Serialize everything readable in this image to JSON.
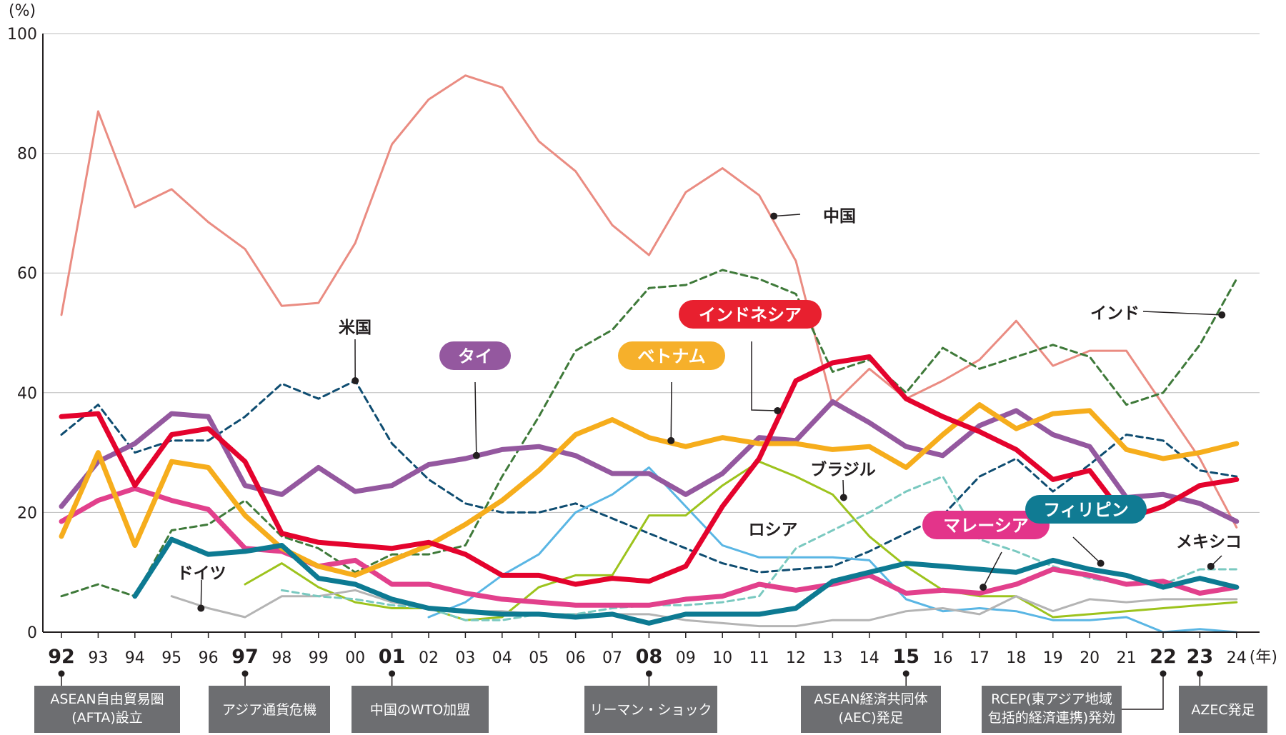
{
  "chart_data": {
    "type": "line",
    "unit_label": "(%)",
    "x_unit_label": "(年)",
    "ylim": [
      0,
      100
    ],
    "yticks": [
      0,
      20,
      40,
      60,
      80,
      100
    ],
    "categories": [
      "92",
      "93",
      "94",
      "95",
      "96",
      "97",
      "98",
      "99",
      "00",
      "01",
      "02",
      "03",
      "04",
      "05",
      "06",
      "07",
      "08",
      "09",
      "10",
      "11",
      "12",
      "13",
      "14",
      "15",
      "16",
      "17",
      "18",
      "19",
      "20",
      "21",
      "22",
      "23",
      "24"
    ],
    "bold_categories": [
      "92",
      "97",
      "01",
      "08",
      "15",
      "22",
      "23"
    ],
    "series": [
      {
        "name": "中国",
        "style": "thin",
        "color": "#ea8c82",
        "dash": false,
        "label_style": "plain",
        "values": [
          53,
          87,
          71,
          74,
          68.5,
          64,
          54.5,
          55,
          65,
          81.5,
          89,
          93,
          91,
          82,
          77,
          68,
          63,
          73.5,
          77.5,
          73,
          62,
          38,
          44,
          39,
          42,
          45.5,
          52,
          44.5,
          47,
          47,
          38,
          29,
          17.5
        ]
      },
      {
        "name": "インド",
        "style": "dashed",
        "color": "#3f7a3a",
        "dash": true,
        "label_style": "plain",
        "values": [
          6,
          8,
          6,
          17,
          18,
          22,
          16,
          14,
          10,
          13,
          13,
          14.5,
          26,
          36,
          47,
          50.5,
          57.5,
          58,
          60.5,
          59,
          56.5,
          43.5,
          45.5,
          40,
          47.5,
          44,
          46,
          48,
          46,
          38,
          40,
          48,
          59
        ]
      },
      {
        "name": "米国",
        "style": "dashed",
        "color": "#0f4d71",
        "dash": true,
        "label_style": "plain",
        "values": [
          33,
          38,
          30,
          32,
          32,
          36,
          41.5,
          39,
          42,
          31.5,
          25.5,
          21.5,
          20,
          20,
          21.5,
          19,
          16.5,
          14,
          11.5,
          10,
          10.5,
          11,
          13.5,
          16.5,
          19.5,
          26,
          29,
          23.5,
          28,
          33,
          32,
          27,
          26
        ]
      },
      {
        "name": "ロシア",
        "style": "thin",
        "color": "#5ab6e4",
        "dash": false,
        "label_style": "plain",
        "values": [
          null,
          null,
          null,
          null,
          null,
          null,
          null,
          null,
          null,
          null,
          2.5,
          5,
          9.5,
          13,
          20,
          23,
          27.5,
          21,
          14.5,
          12.5,
          12.5,
          12.5,
          12,
          5.5,
          3.5,
          4,
          3.5,
          2,
          2,
          2.5,
          0,
          0.5,
          0
        ]
      },
      {
        "name": "ブラジル",
        "style": "thin",
        "color": "#9dc31d",
        "dash": false,
        "label_style": "plain",
        "values": [
          null,
          null,
          null,
          null,
          null,
          8,
          11.5,
          7.5,
          5,
          4,
          4,
          2,
          2.5,
          7.5,
          9.5,
          9.5,
          19.5,
          19.5,
          24.5,
          28.5,
          26,
          23,
          16,
          11,
          7,
          6,
          6,
          2.5,
          3,
          3.5,
          4,
          4.5,
          5
        ]
      },
      {
        "name": "ドイツ",
        "style": "thin",
        "color": "#b4b4b4",
        "dash": false,
        "label_style": "plain",
        "values": [
          null,
          null,
          null,
          6,
          4,
          2.5,
          6,
          6,
          7,
          5,
          4,
          3.5,
          3.5,
          3,
          3,
          3,
          3,
          2,
          1.5,
          1,
          1,
          2,
          2,
          3.5,
          4,
          3,
          6,
          3.5,
          5.5,
          5,
          5.5,
          5.5,
          5.5
        ]
      },
      {
        "name": "メキシコ",
        "style": "dashed",
        "color": "#7ac9c0",
        "dash": true,
        "label_style": "plain",
        "values": [
          null,
          null,
          null,
          null,
          null,
          null,
          7,
          6,
          5.5,
          4.5,
          4,
          2,
          2,
          3,
          3,
          4,
          4.5,
          4.5,
          5,
          6,
          14,
          17,
          20,
          23.5,
          26,
          15.5,
          13.5,
          11,
          9,
          8,
          8,
          10.5,
          10.5
        ]
      },
      {
        "name": "タイ",
        "style": "thick",
        "color": "#94589f",
        "dash": false,
        "label_style": "pill",
        "label_color": "#94589f",
        "values": [
          21,
          28.5,
          31.5,
          36.5,
          36,
          24.5,
          23,
          27.5,
          23.5,
          24.5,
          28,
          29,
          30.5,
          31,
          29.5,
          26.5,
          26.5,
          23,
          26.5,
          32.5,
          32,
          38.5,
          35,
          31,
          29.5,
          34.5,
          37,
          33,
          31,
          22.5,
          23,
          21.5,
          18.5
        ]
      },
      {
        "name": "ベトナム",
        "style": "thick",
        "color": "#f6ad1c",
        "dash": false,
        "label_style": "pill",
        "label_color": "#f6b02b",
        "values": [
          16,
          30,
          14.5,
          28.5,
          27.5,
          19.5,
          14,
          11,
          9.5,
          12,
          14.5,
          18,
          22,
          27,
          33,
          35.5,
          32.5,
          31,
          32.5,
          31.5,
          31.5,
          30.5,
          31,
          27.5,
          33,
          38,
          34,
          36.5,
          37,
          30.5,
          29,
          30,
          31.5
        ]
      },
      {
        "name": "インドネシア",
        "style": "thick",
        "color": "#e4032d",
        "dash": false,
        "label_style": "pill",
        "label_color": "#e8202f",
        "values": [
          36,
          36.5,
          24.5,
          33,
          34,
          28.5,
          16.5,
          15,
          14.5,
          14,
          15,
          13,
          9.5,
          9.5,
          8,
          9,
          8.5,
          11,
          21,
          29,
          42,
          45,
          46,
          39,
          36,
          33.5,
          30.5,
          25.5,
          27,
          19,
          21,
          24.5,
          25.5
        ]
      },
      {
        "name": "マレーシア",
        "style": "thick",
        "color": "#e2408c",
        "dash": false,
        "label_style": "pill",
        "label_color": "#e3348a",
        "values": [
          18.5,
          22,
          24,
          22,
          20.5,
          14,
          13.5,
          11,
          12,
          8,
          8,
          6.5,
          5.5,
          5,
          4.5,
          4.5,
          4.5,
          5.5,
          6,
          8,
          7,
          8,
          9.5,
          6.5,
          7,
          6.5,
          8,
          10.5,
          9.5,
          8,
          8.5,
          6.5,
          7.5
        ]
      },
      {
        "name": "フィリピン",
        "style": "thick",
        "color": "#0d7a92",
        "dash": false,
        "label_style": "pill",
        "label_color": "#107b93",
        "values": [
          null,
          null,
          6,
          15.5,
          13,
          13.5,
          14.5,
          9,
          8,
          5.5,
          4,
          3.5,
          3,
          3,
          2.5,
          3,
          1.5,
          3,
          3,
          3,
          4,
          8.5,
          10,
          11.5,
          11,
          10.5,
          10,
          12,
          10.5,
          9.5,
          7.5,
          9,
          7.5
        ]
      }
    ],
    "events": [
      {
        "year": "92",
        "text_lines": [
          "ASEAN自由貿易圏",
          "(AFTA)設立"
        ]
      },
      {
        "year": "97",
        "text_lines": [
          "アジア通貨危機"
        ]
      },
      {
        "year": "01",
        "text_lines": [
          "中国のWTO加盟"
        ]
      },
      {
        "year": "08",
        "text_lines": [
          "リーマン・ショック"
        ]
      },
      {
        "year": "15",
        "text_lines": [
          "ASEAN経済共同体",
          "(AEC)発足"
        ]
      },
      {
        "year": "22",
        "text_lines": [
          "RCEP(東アジア地域",
          "包括的経済連携)発効"
        ]
      },
      {
        "year": "23",
        "text_lines": [
          "AZEC発足"
        ]
      }
    ]
  }
}
